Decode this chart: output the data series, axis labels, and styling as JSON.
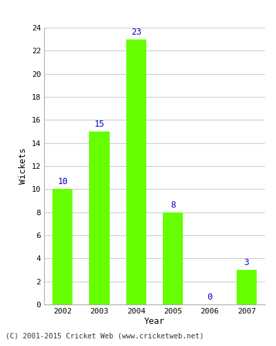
{
  "years": [
    "2002",
    "2003",
    "2004",
    "2005",
    "2006",
    "2007"
  ],
  "values": [
    10,
    15,
    23,
    8,
    0,
    3
  ],
  "bar_color": "#66ff00",
  "label_color": "#0000cc",
  "xlabel": "Year",
  "ylabel": "Wickets",
  "ylim": [
    0,
    24
  ],
  "yticks": [
    0,
    2,
    4,
    6,
    8,
    10,
    12,
    14,
    16,
    18,
    20,
    22,
    24
  ],
  "grid_color": "#cccccc",
  "background_color": "#ffffff",
  "label_fontsize": 9,
  "axis_label_fontsize": 9,
  "tick_fontsize": 8,
  "footer_text": "(C) 2001-2015 Cricket Web (www.cricketweb.net)",
  "footer_fontsize": 7.5,
  "bar_width": 0.55
}
